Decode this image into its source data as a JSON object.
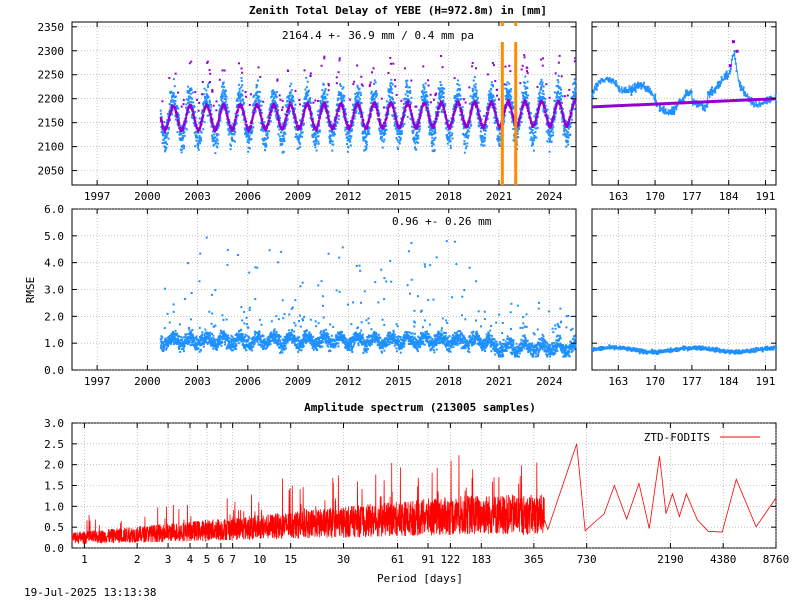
{
  "colors": {
    "zenith_series": "#1e90ff",
    "zenith_model": "#9400d3",
    "zenith_outlier": "#9400d3",
    "marker": "#ff8c00",
    "spectrum": "#ff0000",
    "axis": "#000000",
    "grid": "#a0a0a0"
  },
  "timestamp": "19-Jul-2025 13:13:38",
  "chart_data": [
    {
      "id": "ztd",
      "type": "scatter",
      "title": "Zenith Total Delay of YEBE (H=972.8m) in [mm]",
      "annotation": "2164.4 +-  36.9 mm /  0.4 mm pa",
      "xlabel": "",
      "ylabel": "",
      "xlim": [
        1995.5,
        2025.6
      ],
      "ylim": [
        2020,
        2360
      ],
      "x_ticks": [
        1997,
        2000,
        2003,
        2006,
        2009,
        2012,
        2015,
        2018,
        2021,
        2024
      ],
      "y_ticks": [
        2050,
        2100,
        2150,
        2200,
        2250,
        2300,
        2350
      ],
      "grid": true,
      "data_start": 2000.8,
      "mean": 2164.4,
      "std": 36.9,
      "trend_per_year": 0.4,
      "seasonal_amplitude_model": 25,
      "seasonal_amplitude_data": 45,
      "highlight_lines_x": [
        2021.2,
        2022.0
      ],
      "series": [
        {
          "role": "observations",
          "color": "#1e90ff"
        },
        {
          "role": "model",
          "color": "#9400d3"
        }
      ]
    },
    {
      "id": "ztd-zoom",
      "type": "scatter",
      "xlim": [
        158,
        193
      ],
      "ylim": [
        2020,
        2360
      ],
      "x_ticks": [
        163,
        170,
        177,
        184,
        191
      ],
      "y_ticks": [
        2050,
        2100,
        2150,
        2200,
        2250,
        2300,
        2350
      ],
      "grid": true,
      "model_start": 2183,
      "model_end": 2200
    },
    {
      "id": "rmse",
      "type": "scatter",
      "title": "",
      "annotation": "0.96 +-  0.26 mm",
      "ylabel": "RMSE",
      "xlim": [
        1995.5,
        2025.6
      ],
      "ylim": [
        0,
        6
      ],
      "x_ticks": [
        1997,
        2000,
        2003,
        2006,
        2009,
        2012,
        2015,
        2018,
        2021,
        2024
      ],
      "y_ticks": [
        0.0,
        1.0,
        2.0,
        3.0,
        4.0,
        5.0,
        6.0
      ],
      "grid": true,
      "data_start": 2000.8,
      "mean": 0.96,
      "std": 0.26
    },
    {
      "id": "rmse-zoom",
      "type": "scatter",
      "xlim": [
        158,
        193
      ],
      "ylim": [
        0,
        6
      ],
      "x_ticks": [
        163,
        170,
        177,
        184,
        191
      ],
      "y_ticks": [
        0.0,
        1.0,
        2.0,
        3.0,
        4.0,
        5.0,
        6.0
      ],
      "grid": true,
      "level": 0.75
    },
    {
      "id": "spectrum",
      "type": "line",
      "title": "Amplitude spectrum (213005 samples)",
      "xlabel": "Period [days]",
      "ylabel": "",
      "x_scale": "log",
      "xlim": [
        0.85,
        8760
      ],
      "ylim": [
        0,
        3
      ],
      "x_ticks": [
        1,
        2,
        3,
        4,
        5,
        6,
        7,
        10,
        15,
        30,
        61,
        91,
        122,
        183,
        365,
        730,
        2190,
        4380,
        8760
      ],
      "y_ticks": [
        0.0,
        0.5,
        1.0,
        1.5,
        2.0,
        2.5,
        3.0
      ],
      "grid": true,
      "legend": "ZTD-FODITS",
      "legend_position": "top-right",
      "peaks": [
        {
          "period": 30,
          "value": 2.05
        },
        {
          "period": 70,
          "value": 1.85
        },
        {
          "period": 160,
          "value": 2.05
        },
        {
          "period": 300,
          "value": 2.15
        },
        {
          "period": 640,
          "value": 2.5
        },
        {
          "period": 800,
          "value": 0.6
        },
        {
          "period": 1050,
          "value": 1.5
        },
        {
          "period": 1450,
          "value": 1.55
        },
        {
          "period": 1900,
          "value": 2.2
        },
        {
          "period": 2250,
          "value": 1.3
        },
        {
          "period": 2700,
          "value": 1.3
        },
        {
          "period": 3600,
          "value": 0.4
        },
        {
          "period": 5200,
          "value": 1.65
        },
        {
          "period": 8760,
          "value": 1.2
        }
      ]
    }
  ]
}
